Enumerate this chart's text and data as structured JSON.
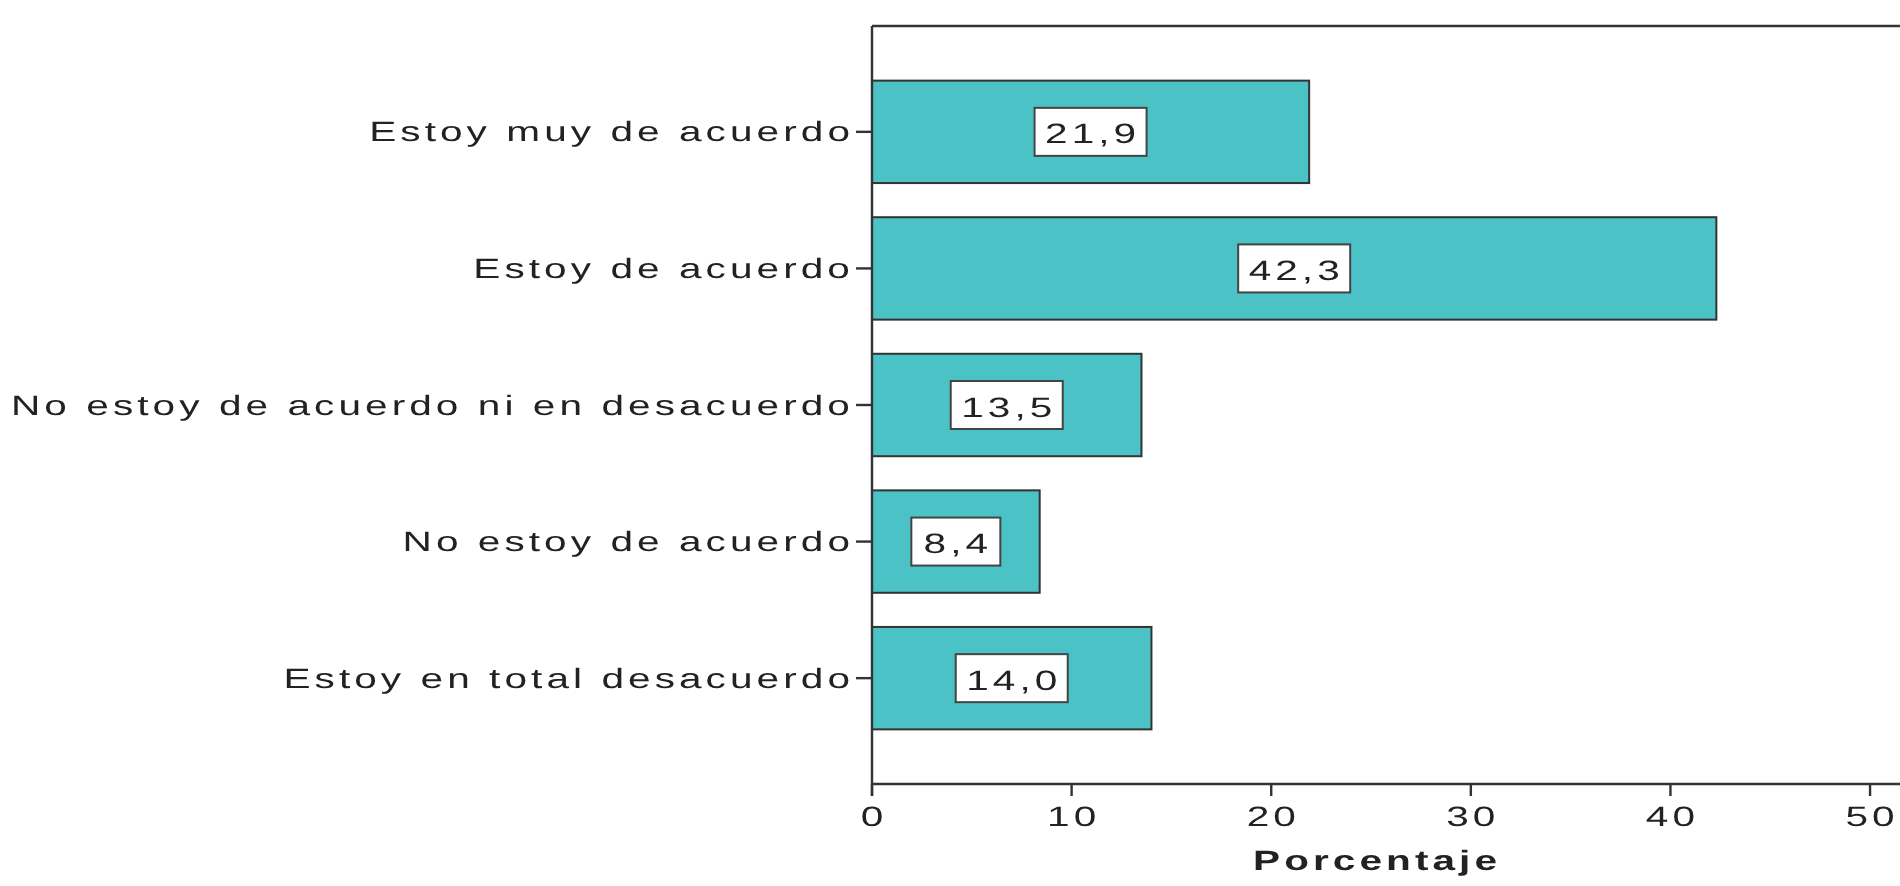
{
  "chart_data": {
    "type": "bar",
    "orientation": "horizontal",
    "categories": [
      "Estoy muy de acuerdo",
      "Estoy de acuerdo",
      "No estoy de acuerdo ni en desacuerdo",
      "No estoy de acuerdo",
      "Estoy en total desacuerdo"
    ],
    "values": [
      21.9,
      42.3,
      13.5,
      8.4,
      14.0
    ],
    "color": "#4ac2c6",
    "value_labels": [
      "21,9",
      "42,3",
      "13,5",
      "8,4",
      "14,0"
    ],
    "xlabel": "Porcentaje",
    "xlim": [
      0,
      51.5
    ],
    "xticks": [
      0,
      10,
      20,
      30,
      40,
      50
    ]
  }
}
